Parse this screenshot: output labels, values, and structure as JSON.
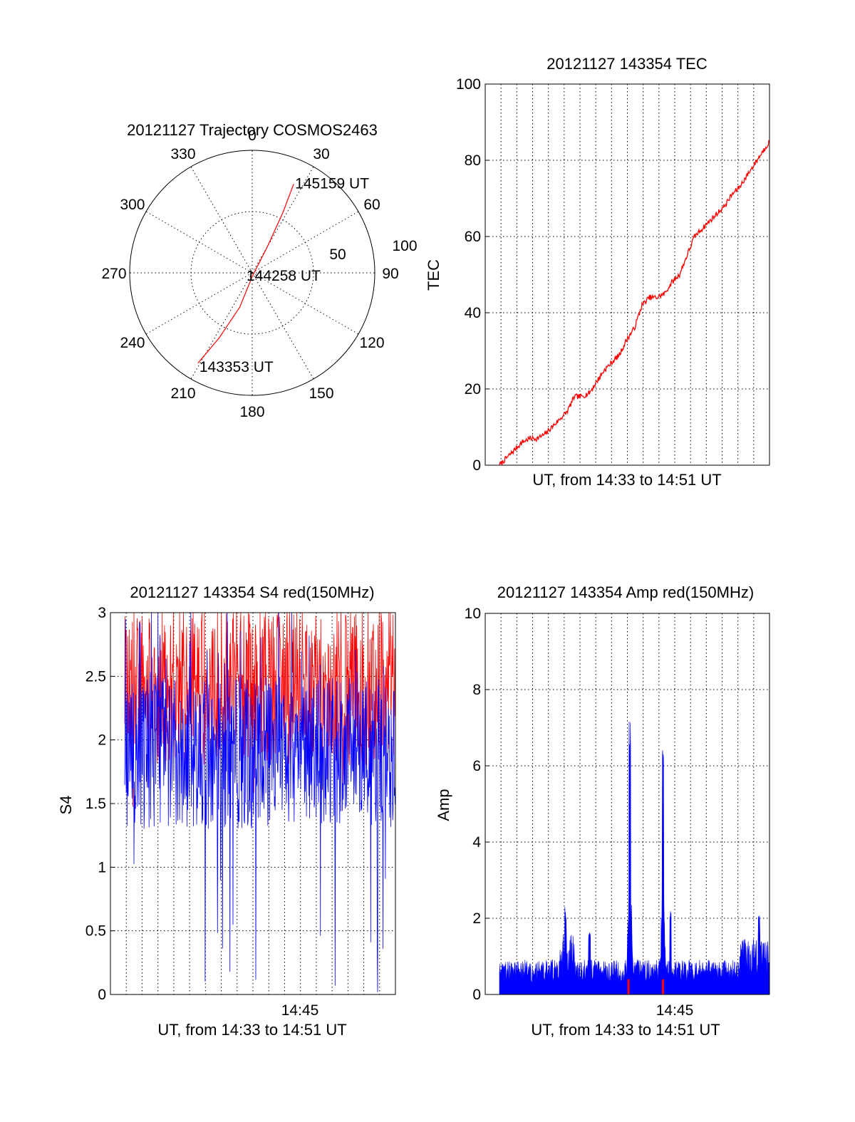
{
  "chart_data": [
    {
      "type": "polar",
      "title": "20121127 Trajectory COSMOS2463",
      "azimuth_labels": [
        "0",
        "30",
        "60",
        "90",
        "120",
        "150",
        "180",
        "210",
        "240",
        "270",
        "300",
        "330"
      ],
      "radial_labels": [
        "50",
        "100"
      ],
      "rlim": [
        0,
        100
      ],
      "grid": true,
      "track": {
        "color": "#ff0000",
        "points": [
          {
            "az": 211,
            "r": 86,
            "label": "143353 UT"
          },
          {
            "az": 207,
            "r": 60
          },
          {
            "az": 200,
            "r": 30
          },
          {
            "az": 180,
            "r": 3,
            "label": "144258 UT"
          },
          {
            "az": 30,
            "r": 25
          },
          {
            "az": 27,
            "r": 55
          },
          {
            "az": 25,
            "r": 80,
            "label": "145159 UT"
          }
        ]
      }
    },
    {
      "type": "line",
      "title": "20121127 143354 TEC",
      "xlabel": "UT, from 14:33 to 14:51 UT",
      "ylabel": "TEC",
      "xlim": [
        0,
        18
      ],
      "ylim": [
        0,
        100
      ],
      "yticks": [
        "0",
        "20",
        "40",
        "60",
        "80",
        "100"
      ],
      "grid": true,
      "series": [
        {
          "color": "#ff0000",
          "x": [
            0.0,
            0.5,
            1.0,
            1.5,
            2.0,
            2.5,
            3.0,
            3.5,
            4.0,
            4.5,
            5.0,
            5.5,
            6.0,
            6.5,
            7.0,
            7.5,
            8.0,
            8.5,
            9.0,
            9.5,
            10.0,
            10.5,
            11.0,
            11.5,
            12.0,
            12.5,
            13.0,
            13.5,
            14.0,
            14.5,
            15.0,
            15.5,
            16.0,
            16.5,
            17.0,
            17.5,
            18.0
          ],
          "values": [
            0,
            2,
            4,
            6,
            7,
            7,
            8,
            10,
            12,
            14,
            18,
            18,
            19,
            22,
            25,
            27,
            29,
            33,
            36,
            42,
            44,
            44,
            45,
            48,
            50,
            55,
            60,
            62,
            64,
            66,
            68,
            71,
            73,
            76,
            79,
            82,
            85
          ]
        }
      ]
    },
    {
      "type": "line",
      "title": "20121127 143354 S4 red(150MHz)",
      "xlabel": "UT, from 14:33 to 14:51 UT",
      "ylabel": "S4",
      "xlim": [
        0,
        18
      ],
      "ylim": [
        0,
        3
      ],
      "yticks": [
        "0",
        "0.5",
        "1",
        "1.5",
        "2",
        "2.5",
        "3"
      ],
      "xticks": [
        {
          "x": 12,
          "label": "14:45"
        }
      ],
      "grid": true,
      "series": [
        {
          "color": "#ff0000",
          "mean": 2.4,
          "spread": 0.6
        },
        {
          "color": "#0000ff",
          "mean": 1.9,
          "spread": 0.6
        }
      ]
    },
    {
      "type": "bar",
      "title": "20121127 143354 Amp red(150MHz)",
      "xlabel": "UT, from 14:33 to 14:51 UT",
      "ylabel": "Amp",
      "xlim": [
        0,
        18
      ],
      "ylim": [
        0,
        10
      ],
      "yticks": [
        "0",
        "2",
        "4",
        "6",
        "8",
        "10"
      ],
      "xticks": [
        {
          "x": 12,
          "label": "14:45"
        }
      ],
      "grid": true,
      "series": [
        {
          "color": "#0000ff",
          "peaks": [
            {
              "x": 8.7,
              "value": 7.5
            },
            {
              "x": 10.9,
              "value": 6.5
            },
            {
              "x": 11.4,
              "value": 2.2
            },
            {
              "x": 17.3,
              "value": 2.1
            },
            {
              "x": 4.4,
              "value": 2.3
            },
            {
              "x": 6.0,
              "value": 1.8
            }
          ],
          "baseline": 0.7
        },
        {
          "color": "#ff0000",
          "peaks": [
            {
              "x": 8.6,
              "value": 0.4
            },
            {
              "x": 10.9,
              "value": 0.4
            }
          ]
        }
      ]
    }
  ]
}
